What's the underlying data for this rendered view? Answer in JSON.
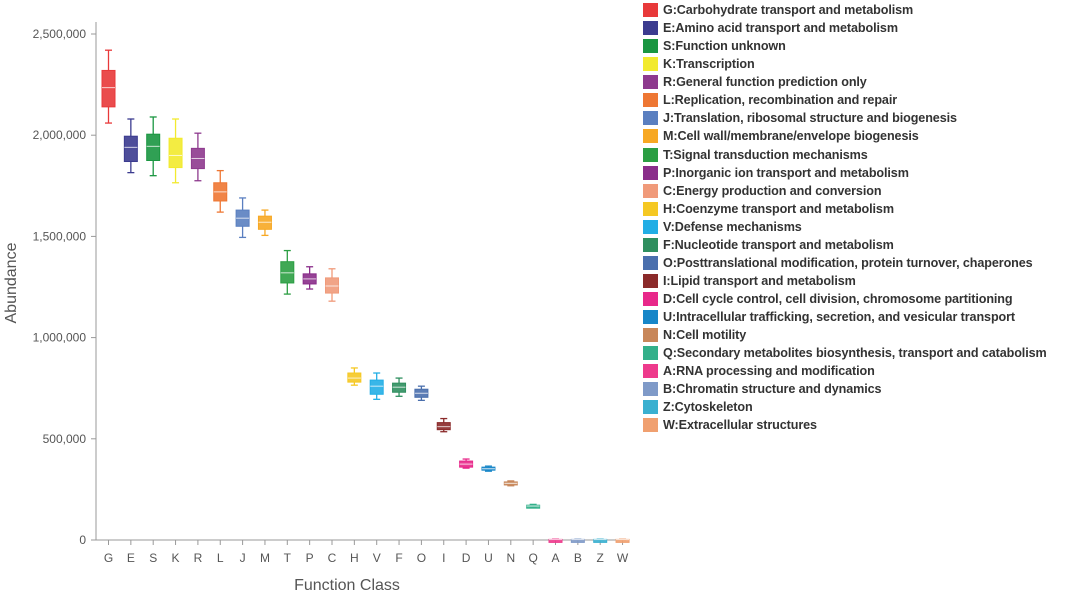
{
  "chart_data": {
    "type": "box",
    "xlabel": "Function Class",
    "ylabel": "Abundance",
    "ylim": [
      0,
      2600000
    ],
    "yticks": [
      0,
      500000,
      1000000,
      1500000,
      2000000,
      2500000
    ],
    "ytick_labels": [
      "0",
      "500,000",
      "1,000,000",
      "1,500,000",
      "2,000,000",
      "2,500,000"
    ],
    "grid": false,
    "legend_placement": "right",
    "categories": [
      "G",
      "E",
      "S",
      "K",
      "R",
      "L",
      "J",
      "M",
      "T",
      "P",
      "C",
      "H",
      "V",
      "F",
      "O",
      "I",
      "D",
      "U",
      "N",
      "Q",
      "A",
      "B",
      "Z",
      "W"
    ],
    "colors": [
      "#e8393a",
      "#3b3b8f",
      "#1a9641",
      "#f2ea2e",
      "#8e3a8e",
      "#ee7733",
      "#5a7fc0",
      "#f7a823",
      "#2b9e43",
      "#8a2d8a",
      "#f09a7a",
      "#f5c823",
      "#22aee5",
      "#2f8f5f",
      "#4a6fad",
      "#8b2a2a",
      "#e8288a",
      "#1786c8",
      "#c8875a",
      "#33b08a",
      "#ee3a8c",
      "#7f9ac8",
      "#3ab0d0",
      "#f0a070"
    ],
    "boxes": [
      {
        "min": 2060000,
        "q1": 2140000,
        "median": 2235000,
        "q3": 2320000,
        "max": 2420000
      },
      {
        "min": 1815000,
        "q1": 1870000,
        "median": 1940000,
        "q3": 1995000,
        "max": 2080000
      },
      {
        "min": 1800000,
        "q1": 1875000,
        "median": 1945000,
        "q3": 2005000,
        "max": 2090000
      },
      {
        "min": 1765000,
        "q1": 1840000,
        "median": 1900000,
        "q3": 1985000,
        "max": 2080000
      },
      {
        "min": 1775000,
        "q1": 1835000,
        "median": 1885000,
        "q3": 1935000,
        "max": 2010000
      },
      {
        "min": 1620000,
        "q1": 1675000,
        "median": 1720000,
        "q3": 1765000,
        "max": 1825000
      },
      {
        "min": 1495000,
        "q1": 1550000,
        "median": 1590000,
        "q3": 1630000,
        "max": 1690000
      },
      {
        "min": 1505000,
        "q1": 1535000,
        "median": 1570000,
        "q3": 1600000,
        "max": 1630000
      },
      {
        "min": 1215000,
        "q1": 1270000,
        "median": 1320000,
        "q3": 1375000,
        "max": 1430000
      },
      {
        "min": 1240000,
        "q1": 1265000,
        "median": 1290000,
        "q3": 1315000,
        "max": 1350000
      },
      {
        "min": 1180000,
        "q1": 1220000,
        "median": 1255000,
        "q3": 1295000,
        "max": 1340000
      },
      {
        "min": 765000,
        "q1": 780000,
        "median": 800000,
        "q3": 825000,
        "max": 850000
      },
      {
        "min": 695000,
        "q1": 720000,
        "median": 760000,
        "q3": 790000,
        "max": 825000
      },
      {
        "min": 710000,
        "q1": 730000,
        "median": 755000,
        "q3": 775000,
        "max": 800000
      },
      {
        "min": 690000,
        "q1": 705000,
        "median": 725000,
        "q3": 745000,
        "max": 760000
      },
      {
        "min": 535000,
        "q1": 545000,
        "median": 560000,
        "q3": 580000,
        "max": 600000
      },
      {
        "min": 355000,
        "q1": 360000,
        "median": 375000,
        "q3": 390000,
        "max": 400000
      },
      {
        "min": 340000,
        "q1": 345000,
        "median": 352000,
        "q3": 360000,
        "max": 365000
      },
      {
        "min": 268000,
        "q1": 272000,
        "median": 280000,
        "q3": 287000,
        "max": 292000
      },
      {
        "min": 160000,
        "q1": 164000,
        "median": 168000,
        "q3": 172000,
        "max": 176000
      },
      {
        "min": 0,
        "q1": 1000,
        "median": 2000,
        "q3": 3000,
        "max": 4000
      },
      {
        "min": 0,
        "q1": 1000,
        "median": 2000,
        "q3": 3000,
        "max": 4000
      },
      {
        "min": 0,
        "q1": 1000,
        "median": 2000,
        "q3": 3000,
        "max": 4000
      },
      {
        "min": 0,
        "q1": 1000,
        "median": 2000,
        "q3": 3000,
        "max": 4000
      }
    ],
    "legend": [
      "G:Carbohydrate transport and metabolism",
      "E:Amino acid transport and metabolism",
      "S:Function unknown",
      "K:Transcription",
      "R:General function prediction only",
      "L:Replication, recombination and repair",
      "J:Translation, ribosomal structure and biogenesis",
      "M:Cell wall/membrane/envelope biogenesis",
      "T:Signal transduction mechanisms",
      "P:Inorganic ion transport and metabolism",
      "C:Energy production and conversion",
      "H:Coenzyme transport and metabolism",
      "V:Defense mechanisms",
      "F:Nucleotide transport and metabolism",
      "O:Posttranslational modification, protein turnover, chaperones",
      "I:Lipid transport and metabolism",
      "D:Cell cycle control, cell division, chromosome partitioning",
      "U:Intracellular trafficking, secretion, and vesicular transport",
      "N:Cell motility",
      "Q:Secondary metabolites biosynthesis, transport and catabolism",
      "A:RNA processing and modification",
      "B:Chromatin structure and dynamics",
      "Z:Cytoskeleton",
      "W:Extracellular structures"
    ]
  }
}
